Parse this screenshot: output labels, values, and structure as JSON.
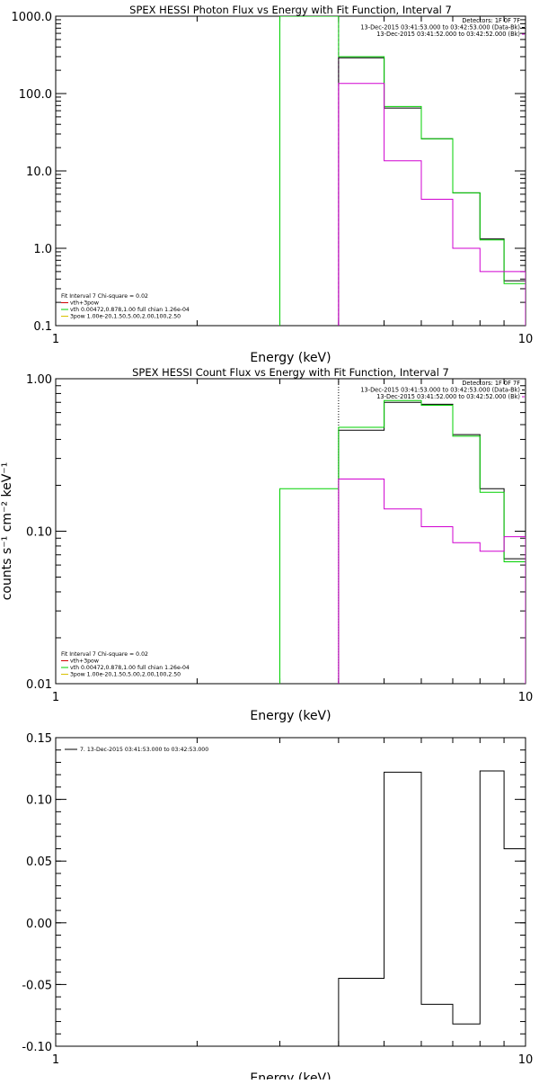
{
  "colors": {
    "black": "#000000",
    "green": "#00d000",
    "magenta": "#d000d0",
    "red": "#d00000",
    "yellow": "#d8c000"
  },
  "chart_data": [
    {
      "type": "line",
      "title": "SPEX HESSI Photon Flux vs Energy with Fit Function, Interval 7",
      "xlabel": "Energy (keV)",
      "ylabel": "",
      "xscale": "log",
      "yscale": "log",
      "xlim": [
        1,
        10
      ],
      "ylim": [
        0.1,
        1000
      ],
      "x_ticks": [
        {
          "v": 1,
          "label": "1"
        },
        {
          "v": 10,
          "label": "10"
        }
      ],
      "y_ticks": [
        {
          "v": 1000,
          "label": "1000.0"
        },
        {
          "v": 100,
          "label": "100.0"
        },
        {
          "v": 10,
          "label": "10.0"
        },
        {
          "v": 1,
          "label": "1.0"
        },
        {
          "v": 0.1,
          "label": "0.1"
        }
      ],
      "top_right_lines": [
        "Detectors: 1F 0F 7F",
        "13-Dec-2015 03:41:53.000 to 03:42:53.000 (Data-Bk)",
        "13-Dec-2015 03:41:52.000 to 03:42:52.000 (Bk)"
      ],
      "legend_lines": [
        "Fit Interval 7   Chi-square = 0.02",
        "vth+3pow",
        "vth 0.00472,0.878,1.00   full chian 1.26e-04",
        "3pow 1.00e-20,1.50,5.00,2.00,100,2.50"
      ],
      "series": [
        {
          "name": "Data-Bk",
          "color": "black",
          "edges": [
            4.0,
            5.0,
            6.0,
            7.0,
            8.0,
            9.0,
            10.0
          ],
          "values": [
            290,
            65,
            26,
            5.2,
            1.32,
            0.38
          ]
        },
        {
          "name": "vth+3pow",
          "color": "green",
          "edges": [
            3.0,
            4.0,
            5.0,
            6.0,
            7.0,
            8.0,
            9.0,
            10.0
          ],
          "values": [
            1000,
            300,
            68,
            26,
            5.2,
            1.28,
            0.35
          ]
        },
        {
          "name": "Bk",
          "color": "magenta",
          "edges": [
            4.0,
            5.0,
            6.0,
            7.0,
            8.0,
            9.0,
            10.0
          ],
          "values": [
            135,
            13.5,
            4.3,
            1.0,
            0.5,
            0.5
          ]
        }
      ],
      "vertical_markers": [
        {
          "x": 4.0,
          "style": "dashed",
          "color": "magenta"
        }
      ]
    },
    {
      "type": "line",
      "title": "SPEX HESSI Count Flux vs Energy with Fit Function, Interval 7",
      "xlabel": "Energy (keV)",
      "ylabel": "counts s⁻¹ cm⁻² keV⁻¹",
      "xscale": "log",
      "yscale": "log",
      "xlim": [
        1,
        10
      ],
      "ylim": [
        0.01,
        1
      ],
      "x_ticks": [
        {
          "v": 1,
          "label": "1"
        },
        {
          "v": 10,
          "label": "10"
        }
      ],
      "y_ticks": [
        {
          "v": 1,
          "label": "1.00"
        },
        {
          "v": 0.1,
          "label": "0.10"
        },
        {
          "v": 0.01,
          "label": "0.01"
        }
      ],
      "top_right_lines": [
        "Detectors: 1F 0F 7F",
        "13-Dec-2015 03:41:53.000 to 03:42:53.000 (Data-Bk)",
        "13-Dec-2015 03:41:52.000 to 03:42:52.000 (Bk)"
      ],
      "legend_lines": [
        "Fit Interval 7   Chi-square = 0.02",
        "vth+3pow",
        "vth 0.00472,0.878,1.00   full chian 1.26e-04",
        "3pow 1.00e-20,1.50,5.00,2.00,100,2.50"
      ],
      "series": [
        {
          "name": "Data-Bk",
          "color": "black",
          "edges": [
            4.0,
            5.0,
            6.0,
            7.0,
            8.0,
            9.0,
            10.0
          ],
          "values": [
            0.46,
            0.7,
            0.68,
            0.43,
            0.19,
            0.066
          ]
        },
        {
          "name": "vth+3pow",
          "color": "green",
          "edges": [
            3.0,
            4.0,
            5.0,
            6.0,
            7.0,
            8.0,
            9.0,
            10.0
          ],
          "values": [
            0.19,
            0.48,
            0.72,
            0.67,
            0.42,
            0.18,
            0.063
          ]
        },
        {
          "name": "Bk",
          "color": "magenta",
          "edges": [
            4.0,
            5.0,
            6.0,
            7.0,
            8.0,
            9.0,
            10.0
          ],
          "values": [
            0.22,
            0.14,
            0.107,
            0.084,
            0.074,
            0.092
          ]
        }
      ],
      "vertical_markers": [
        {
          "x": 4.0,
          "style": "dotted",
          "color": "black"
        }
      ]
    },
    {
      "type": "line",
      "title": "",
      "xlabel": "Energy (keV)",
      "ylabel": "",
      "xscale": "log",
      "yscale": "linear",
      "xlim": [
        1,
        10
      ],
      "ylim": [
        -0.1,
        0.15
      ],
      "x_ticks": [
        {
          "v": 1,
          "label": "1"
        },
        {
          "v": 10,
          "label": "10"
        }
      ],
      "y_ticks": [
        {
          "v": 0.15,
          "label": "0.15"
        },
        {
          "v": 0.1,
          "label": "0.10"
        },
        {
          "v": 0.05,
          "label": "0.05"
        },
        {
          "v": 0.0,
          "label": "0.00"
        },
        {
          "v": -0.05,
          "label": "-0.05"
        },
        {
          "v": -0.1,
          "label": "-0.10"
        }
      ],
      "legend_lines": [
        "7. 13-Dec-2015 03:41:53.000 to 03:42:53.000"
      ],
      "series": [
        {
          "name": "7. 13-Dec-2015 03:41:53.000 to 03:42:53.000",
          "color": "black",
          "edges": [
            4.0,
            5.0,
            6.0,
            7.0,
            8.0,
            9.0,
            10.0
          ],
          "values": [
            -0.045,
            0.122,
            -0.066,
            -0.082,
            0.123,
            0.06
          ]
        }
      ]
    }
  ]
}
